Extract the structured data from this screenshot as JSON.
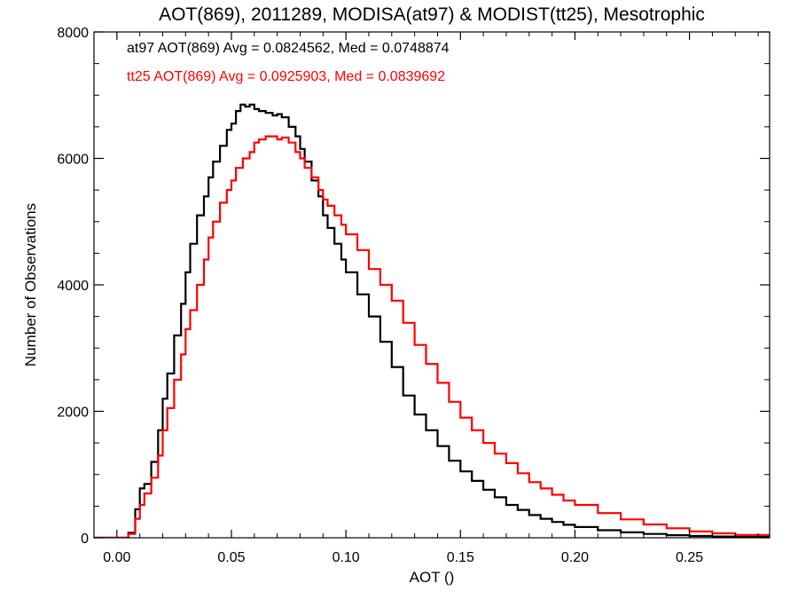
{
  "chart_data": {
    "type": "line",
    "title": "AOT(869), 2011289, MODISA(at97) & MODIST(tt25), Mesotrophic",
    "xlabel": "AOT ()",
    "ylabel": "Number of Observations",
    "xlim": [
      -0.01,
      0.285
    ],
    "ylim": [
      0,
      8000
    ],
    "xticks": [
      0.0,
      0.05,
      0.1,
      0.15,
      0.2,
      0.25
    ],
    "xtick_labels": [
      "0.00",
      "0.05",
      "0.10",
      "0.15",
      "0.20",
      "0.25"
    ],
    "yticks": [
      0,
      2000,
      4000,
      6000,
      8000
    ],
    "ytick_labels": [
      "0",
      "2000",
      "4000",
      "6000",
      "8000"
    ],
    "grid": false,
    "legend_position": "top-left",
    "step": true,
    "series": [
      {
        "name": "at97",
        "color": "#000000",
        "legend_text": "at97 AOT(869) Avg = 0.0824562, Med = 0.0748874",
        "x": [
          -0.01,
          0.0,
          0.005,
          0.008,
          0.01,
          0.012,
          0.015,
          0.018,
          0.02,
          0.022,
          0.025,
          0.028,
          0.03,
          0.032,
          0.035,
          0.038,
          0.04,
          0.042,
          0.045,
          0.048,
          0.05,
          0.052,
          0.054,
          0.056,
          0.058,
          0.06,
          0.062,
          0.065,
          0.068,
          0.07,
          0.072,
          0.075,
          0.078,
          0.08,
          0.082,
          0.085,
          0.088,
          0.09,
          0.092,
          0.095,
          0.098,
          0.1,
          0.105,
          0.11,
          0.115,
          0.12,
          0.125,
          0.13,
          0.135,
          0.14,
          0.145,
          0.15,
          0.155,
          0.16,
          0.165,
          0.17,
          0.175,
          0.18,
          0.185,
          0.19,
          0.195,
          0.2,
          0.21,
          0.22,
          0.23,
          0.24,
          0.25,
          0.26,
          0.27,
          0.285
        ],
        "y": [
          0,
          0,
          80,
          450,
          780,
          850,
          1200,
          1700,
          2200,
          2600,
          3200,
          3700,
          4200,
          4650,
          5100,
          5400,
          5700,
          5950,
          6200,
          6450,
          6550,
          6750,
          6850,
          6820,
          6850,
          6780,
          6750,
          6720,
          6680,
          6700,
          6650,
          6500,
          6350,
          6150,
          5950,
          5650,
          5400,
          5100,
          4900,
          4650,
          4400,
          4200,
          3850,
          3500,
          3100,
          2700,
          2250,
          1950,
          1700,
          1450,
          1220,
          1050,
          900,
          760,
          640,
          520,
          440,
          360,
          300,
          250,
          205,
          170,
          120,
          85,
          60,
          40,
          28,
          20,
          14,
          8
        ]
      },
      {
        "name": "tt25",
        "color": "#ff0000",
        "legend_text": "tt25 AOT(869) Avg = 0.0925903, Med = 0.0839692",
        "x": [
          -0.01,
          0.0,
          0.005,
          0.008,
          0.01,
          0.012,
          0.015,
          0.018,
          0.02,
          0.022,
          0.025,
          0.028,
          0.03,
          0.032,
          0.035,
          0.038,
          0.04,
          0.042,
          0.045,
          0.048,
          0.05,
          0.052,
          0.055,
          0.058,
          0.06,
          0.062,
          0.065,
          0.068,
          0.07,
          0.072,
          0.075,
          0.078,
          0.08,
          0.082,
          0.085,
          0.088,
          0.09,
          0.092,
          0.095,
          0.098,
          0.1,
          0.105,
          0.11,
          0.115,
          0.12,
          0.125,
          0.13,
          0.135,
          0.14,
          0.145,
          0.15,
          0.155,
          0.16,
          0.165,
          0.17,
          0.175,
          0.18,
          0.185,
          0.19,
          0.195,
          0.2,
          0.21,
          0.22,
          0.23,
          0.24,
          0.25,
          0.26,
          0.27,
          0.285
        ],
        "y": [
          0,
          0,
          60,
          300,
          520,
          700,
          950,
          1300,
          1700,
          2050,
          2500,
          2900,
          3300,
          3600,
          4000,
          4400,
          4750,
          5000,
          5300,
          5500,
          5650,
          5850,
          6000,
          6100,
          6250,
          6300,
          6350,
          6350,
          6300,
          6330,
          6250,
          6100,
          6000,
          5850,
          5700,
          5500,
          5350,
          5250,
          5100,
          4950,
          4800,
          4550,
          4250,
          4000,
          3750,
          3400,
          3050,
          2750,
          2450,
          2150,
          1900,
          1700,
          1500,
          1330,
          1180,
          1020,
          880,
          780,
          680,
          590,
          520,
          390,
          290,
          210,
          150,
          100,
          70,
          45,
          30
        ]
      }
    ]
  }
}
